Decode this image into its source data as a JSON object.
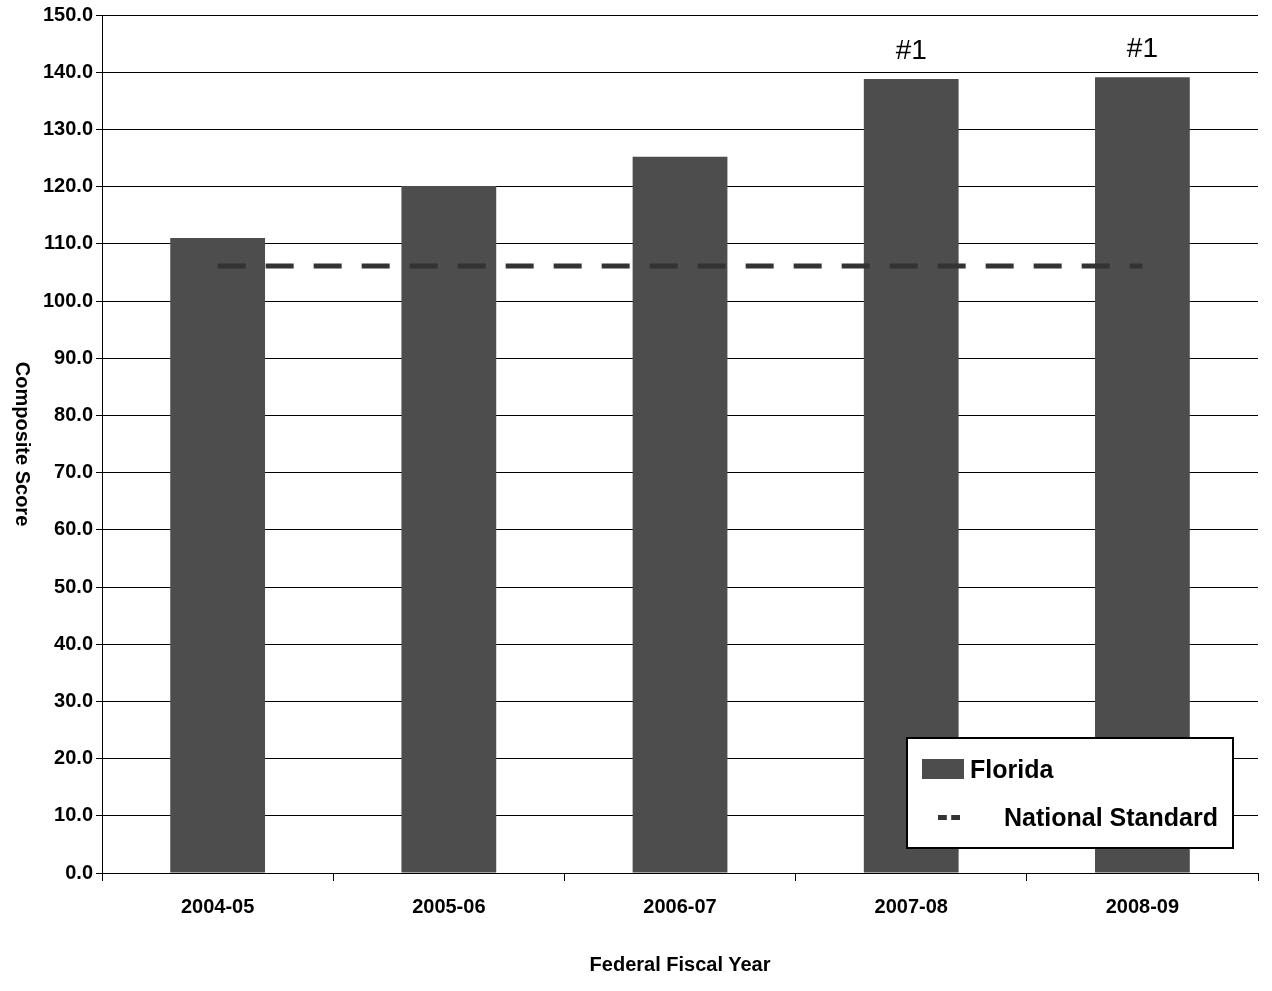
{
  "chart_data": {
    "type": "bar",
    "xlabel": "Federal Fiscal Year",
    "ylabel": "Composite Score",
    "categories": [
      "2004-05",
      "2005-06",
      "2006-07",
      "2007-08",
      "2008-09"
    ],
    "series": [
      {
        "name": "Florida",
        "color": "#4d4d4d",
        "values": [
          111.0,
          120.1,
          125.2,
          138.8,
          139.1
        ]
      },
      {
        "name": "National Standard",
        "type": "line",
        "color": "#333333",
        "line_style": "dashed",
        "marker": "none",
        "values": [
          106.1,
          106.1,
          106.1,
          106.1,
          106.1
        ]
      }
    ],
    "ylim": [
      0,
      150
    ],
    "yticks": [
      {
        "value": 0,
        "label": "0.0"
      },
      {
        "value": 10,
        "label": "10.0"
      },
      {
        "value": 20,
        "label": "20.0"
      },
      {
        "value": 30,
        "label": "30.0"
      },
      {
        "value": 40,
        "label": "40.0"
      },
      {
        "value": 50,
        "label": "50.0"
      },
      {
        "value": 60,
        "label": "60.0"
      },
      {
        "value": 70,
        "label": "70.0"
      },
      {
        "value": 80,
        "label": "80.0"
      },
      {
        "value": 90,
        "label": "90.0"
      },
      {
        "value": 100,
        "label": "100.0"
      },
      {
        "value": 110,
        "label": "110.0"
      },
      {
        "value": 120,
        "label": "120.0"
      },
      {
        "value": 130,
        "label": "130.0"
      },
      {
        "value": 140,
        "label": "140.0"
      },
      {
        "value": 150,
        "label": "150.0"
      }
    ],
    "grid": "y",
    "legend": "bottom right",
    "annotations": [
      {
        "text": "#1",
        "x": "2007-08",
        "y": 138.8
      },
      {
        "text": "#1",
        "x": "2008-09",
        "y": 139.1
      }
    ]
  }
}
